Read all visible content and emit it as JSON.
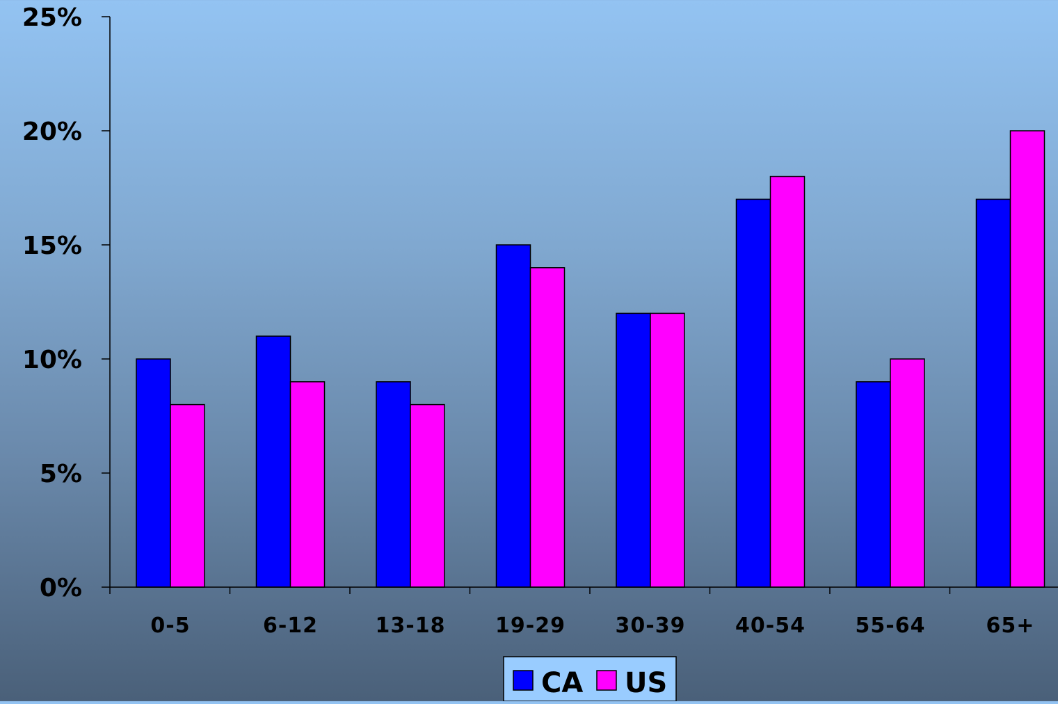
{
  "chart_data": {
    "type": "bar",
    "title": "",
    "xlabel": "",
    "ylabel": "",
    "categories": [
      "0-5",
      "6-12",
      "13-18",
      "19-29",
      "30-39",
      "40-54",
      "55-64",
      "65+"
    ],
    "series": [
      {
        "name": "CA",
        "values": [
          10,
          11,
          9,
          15,
          12,
          17,
          9,
          17
        ],
        "color": "#0000ff"
      },
      {
        "name": "US",
        "values": [
          8,
          9,
          8,
          14,
          12,
          18,
          10,
          20
        ],
        "color": "#ff00ff"
      }
    ],
    "ylim": [
      0,
      25
    ],
    "yticks": [
      0,
      5,
      10,
      15,
      20,
      25
    ],
    "ytick_labels": [
      "0%",
      "5%",
      "10%",
      "15%",
      "20%",
      "25%"
    ],
    "grid": false,
    "legend": {
      "placement": "bottom-center",
      "background": "#99ccff"
    }
  }
}
